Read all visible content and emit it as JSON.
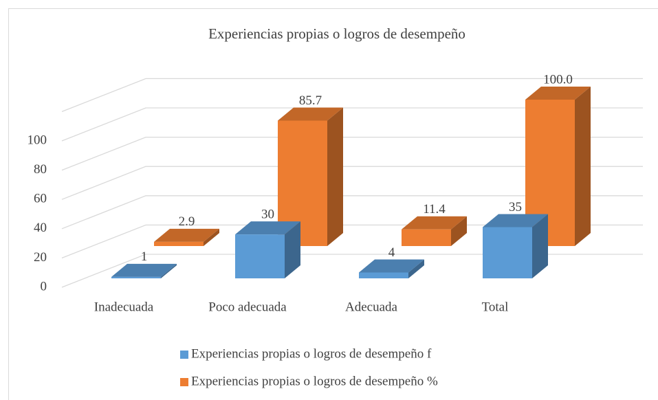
{
  "chart_data": {
    "type": "bar3d",
    "title": "Experiencias propias o logros de desempeño",
    "categories": [
      "Inadecuada",
      "Poco adecuada",
      "Adecuada",
      "Total"
    ],
    "series": [
      {
        "name": "Experiencias propias o logros de desempeño f",
        "color": "#5b9bd5",
        "values": [
          1,
          30,
          4,
          35
        ]
      },
      {
        "name": "Experiencias propias o logros de desempeño %",
        "color": "#ed7d31",
        "values": [
          2.9,
          85.7,
          11.4,
          100
        ],
        "value_labels": [
          "2.9",
          "85.7",
          "11.4",
          "100.0"
        ]
      }
    ],
    "ylim": [
      0,
      120
    ],
    "yticks": [
      0,
      20,
      40,
      60,
      80,
      100
    ],
    "grid": true,
    "legend": "bottom"
  }
}
